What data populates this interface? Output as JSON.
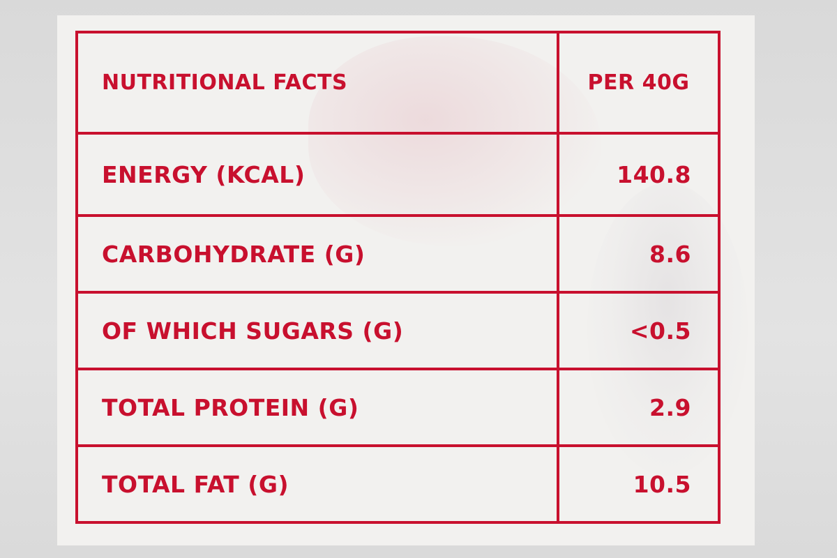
{
  "table": {
    "header": {
      "label": "NUTRITIONAL FACTS",
      "value": "PER 40G"
    },
    "rows": [
      {
        "label": "ENERGY (KCAL)",
        "value": "140.8"
      },
      {
        "label": "CARBOHYDRATE (G)",
        "value": "8.6"
      },
      {
        "label": "OF WHICH SUGARS (G)",
        "value": "<0.5"
      },
      {
        "label": "TOTAL PROTEIN (G)",
        "value": "2.9"
      },
      {
        "label": "TOTAL FAT (G)",
        "value": "10.5"
      }
    ]
  },
  "colors": {
    "ink": "#c8102e",
    "paper": "#f2f1ef",
    "background": "#dcdcdc"
  }
}
